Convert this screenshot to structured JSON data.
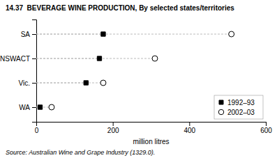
{
  "chart_data": {
    "type": "dot",
    "orientation": "horizontal",
    "title": "14.37  BEVERAGE WINE PRODUCTION, By selected states/territories",
    "xlabel": "million litres",
    "source": "Source: Australian Wine and Grape Industry (1329.0).",
    "categories": [
      "WA",
      "Vic.",
      "NSWACT",
      "SA"
    ],
    "series": [
      {
        "name": "1992–93",
        "color": "black",
        "marker": "square",
        "values": [
          10,
          130,
          165,
          175
        ]
      },
      {
        "name": "2002–03",
        "color": "white",
        "marker": "circle",
        "values": [
          40,
          175,
          310,
          510
        ]
      }
    ],
    "xlim": [
      0,
      600
    ],
    "xticks": [
      0,
      200,
      400,
      600
    ],
    "legend": "lower right",
    "grid": false
  }
}
